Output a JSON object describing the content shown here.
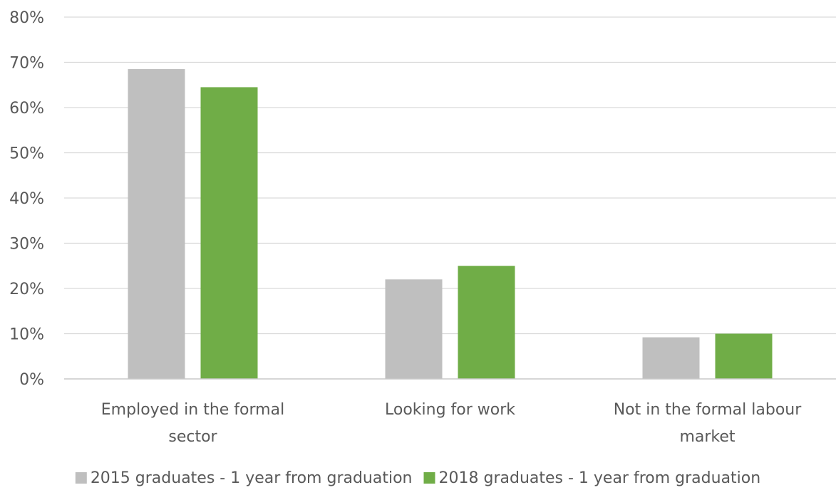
{
  "chart_data": {
    "type": "bar",
    "title": "",
    "xlabel": "",
    "ylabel": "",
    "ylim": [
      0,
      80
    ],
    "y_ticks": [
      "0%",
      "10%",
      "20%",
      "30%",
      "40%",
      "50%",
      "60%",
      "70%",
      "80%"
    ],
    "grid": true,
    "legend_position": "bottom",
    "categories": [
      [
        "Employed in the formal",
        "sector"
      ],
      [
        "Looking for work"
      ],
      [
        "Not in the formal labour",
        "market"
      ]
    ],
    "series": [
      {
        "name": "2015 graduates - 1 year from graduation",
        "color": "#bfbfbf",
        "values": [
          68.5,
          22,
          9.2
        ]
      },
      {
        "name": "2018 graduates - 1 year from graduation",
        "color": "#70ad47",
        "values": [
          64.5,
          25,
          10
        ]
      }
    ]
  }
}
